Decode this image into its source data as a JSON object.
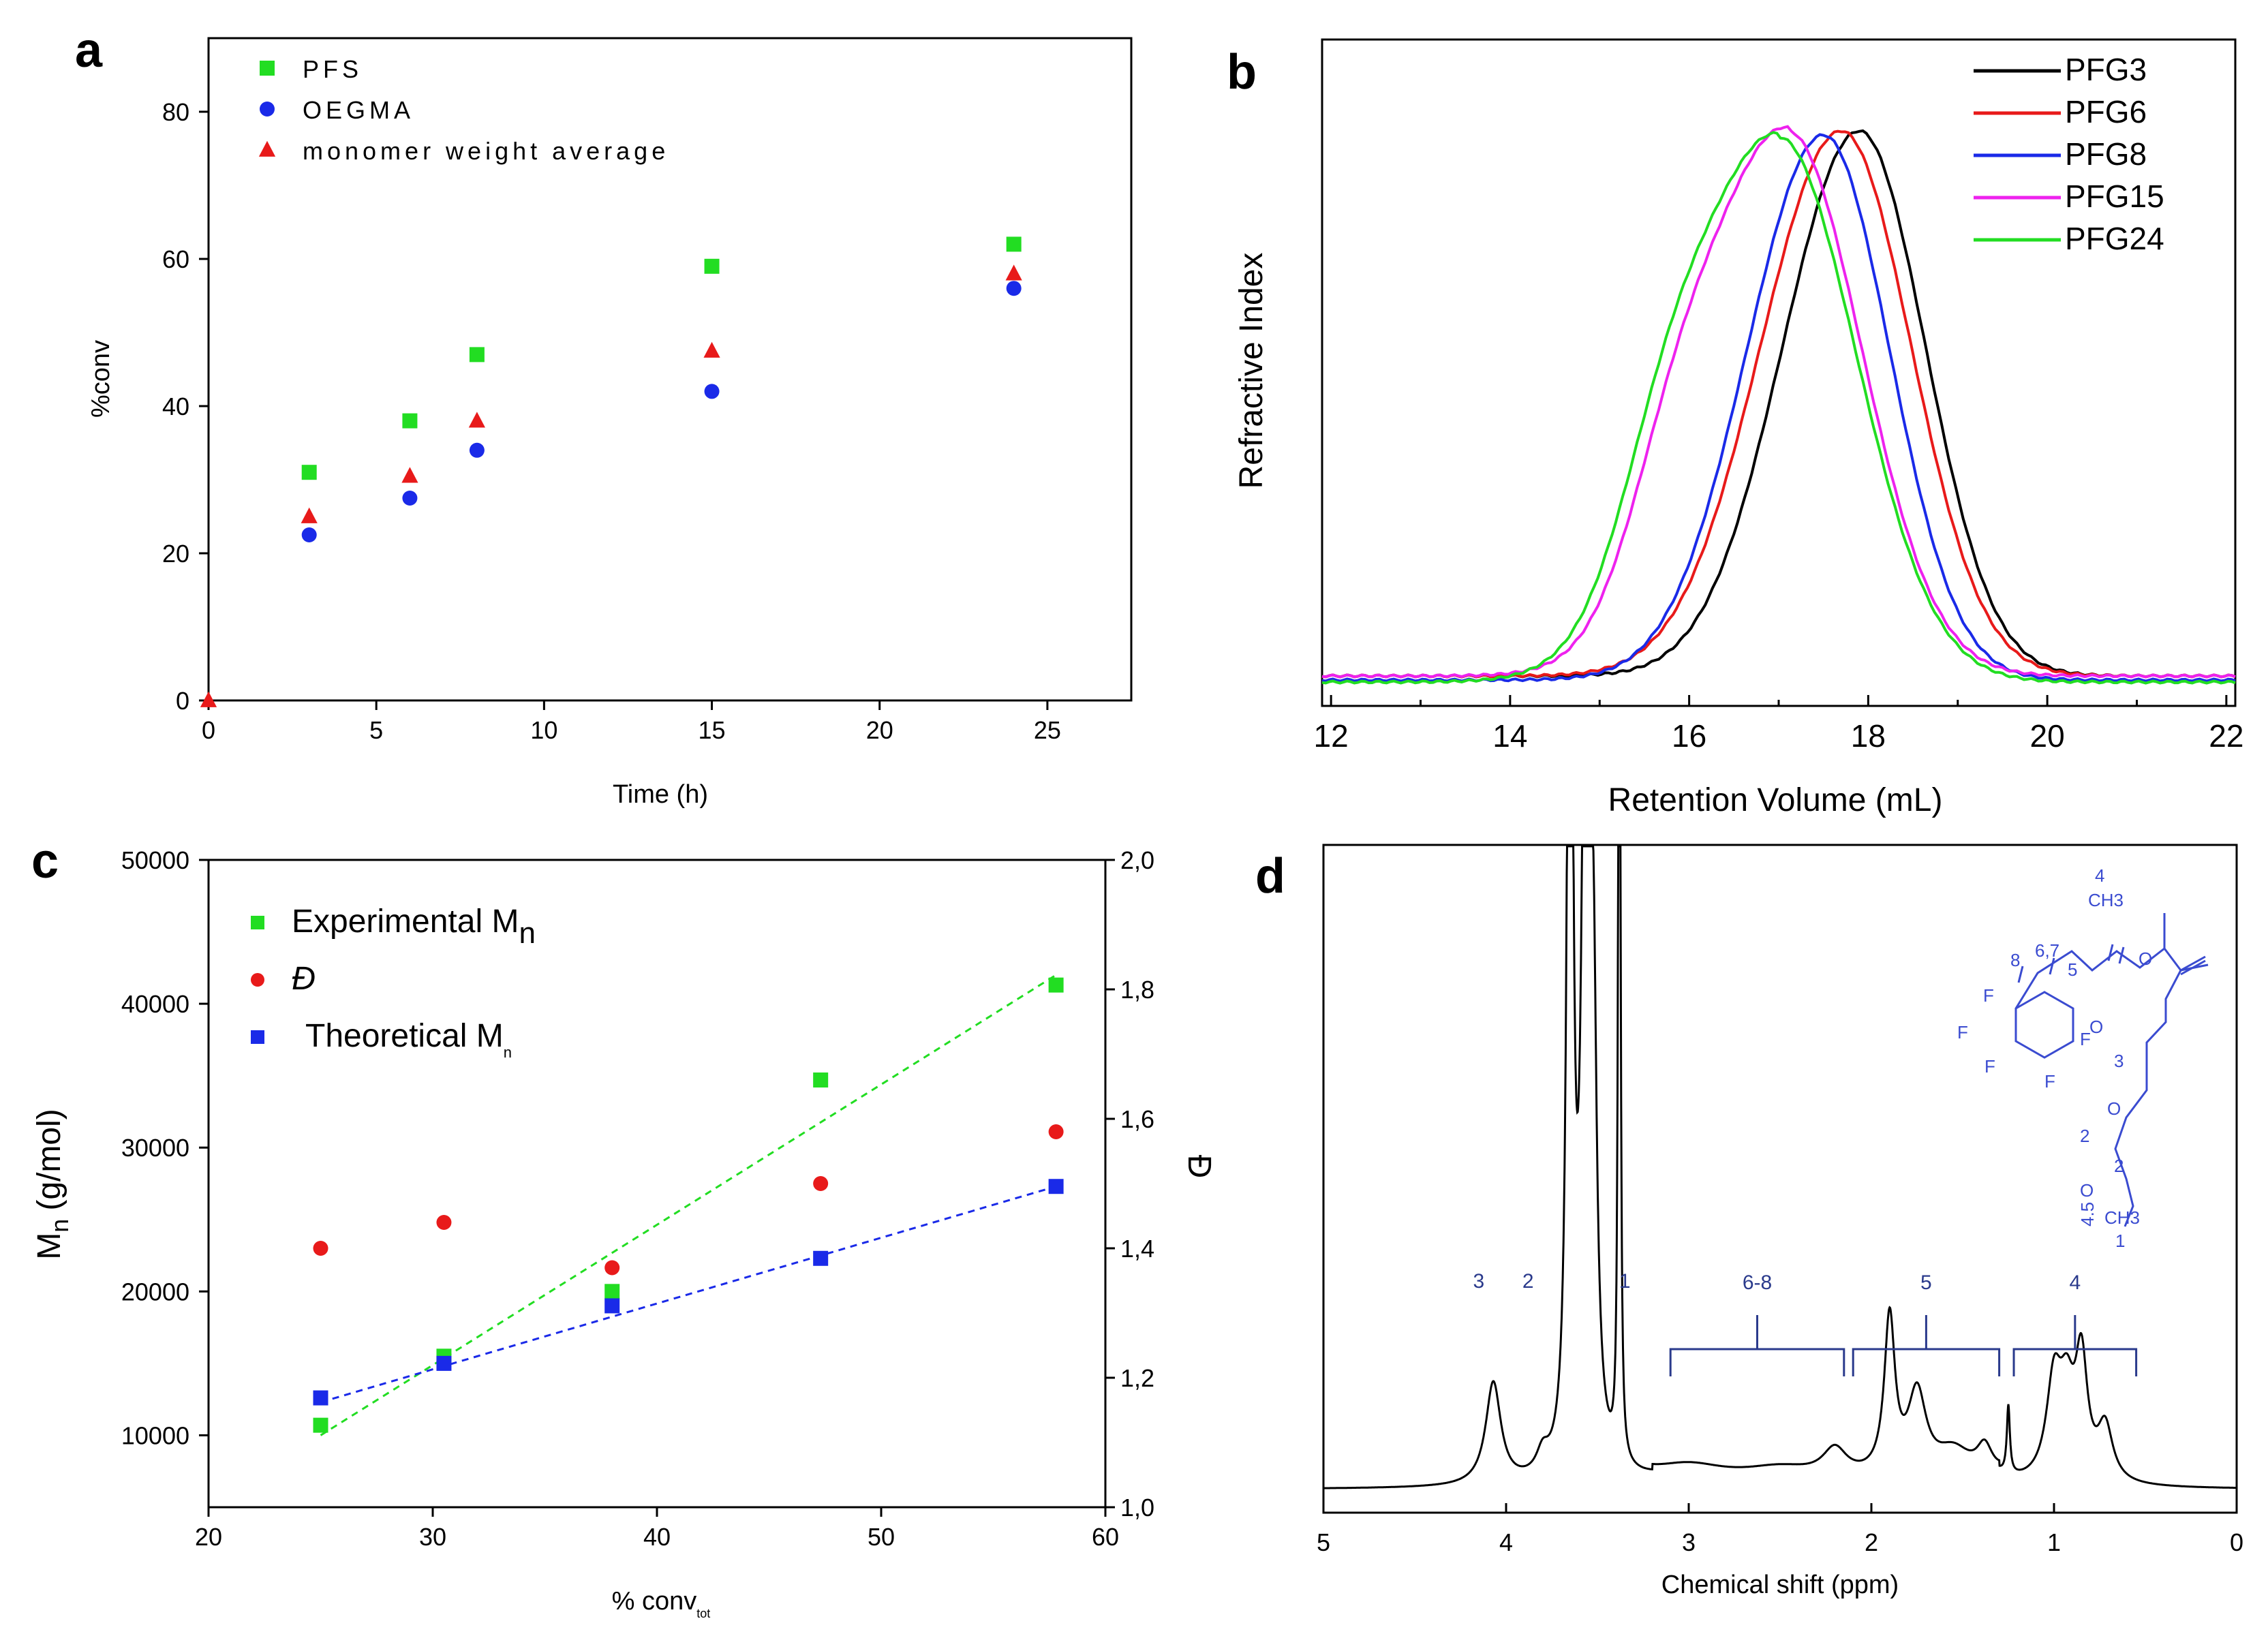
{
  "panels": {
    "a": {
      "label": "a",
      "chart_data": {
        "type": "scatter",
        "xlabel": "Time (h)",
        "ylabel": "%conv",
        "xlim": [
          0,
          27.5
        ],
        "ylim": [
          0,
          90
        ],
        "xticks": [
          0,
          5,
          10,
          15,
          20,
          25
        ],
        "yticks": [
          0,
          20,
          40,
          60,
          80
        ],
        "legend_position": "top-left",
        "series": [
          {
            "name": "PFS",
            "marker": "square",
            "color": "#22dd22",
            "x": [
              3,
              6,
              8,
              15,
              24
            ],
            "y": [
              31,
              38,
              47,
              59,
              62
            ]
          },
          {
            "name": "OEGMA",
            "marker": "circle",
            "color": "#1a2ae8",
            "x": [
              3,
              6,
              8,
              15,
              24
            ],
            "y": [
              22.5,
              27.5,
              34,
              42,
              56
            ]
          },
          {
            "name": "monomer weight average",
            "marker": "triangle",
            "color": "#e81a1a",
            "x": [
              0,
              3,
              6,
              8,
              15,
              24
            ],
            "y": [
              0,
              25,
              30.5,
              38,
              47.5,
              58
            ]
          }
        ]
      }
    },
    "b": {
      "label": "b",
      "chart_data": {
        "type": "line",
        "xlabel": "Retention Volume (mL)",
        "ylabel": "Refractive Index",
        "xlim": [
          11.9,
          22.1
        ],
        "xticks": [
          12,
          14,
          16,
          18,
          20,
          22
        ],
        "legend_position": "top-right",
        "series": [
          {
            "name": "PFG3",
            "color": "#000000",
            "peak": 17.9,
            "width": 0.9,
            "baseline": 0.03,
            "base_level": 0.03
          },
          {
            "name": "PFG6",
            "color": "#e81a1a",
            "peak": 17.7,
            "width": 0.95,
            "baseline": 0.03,
            "base_level": 0.03
          },
          {
            "name": "PFG8",
            "color": "#1a2ae8",
            "peak": 17.5,
            "width": 0.9,
            "baseline": 0.02,
            "base_level": 0.02
          },
          {
            "name": "PFG15",
            "color": "#ee22ee",
            "peak": 17.1,
            "width": 1.0,
            "baseline": 0.03,
            "base_level": 0.03
          },
          {
            "name": "PFG24",
            "color": "#22dd22",
            "peak": 17.0,
            "width": 1.05,
            "baseline": 0.015,
            "base_level": 0.015
          }
        ]
      }
    },
    "c": {
      "label": "c",
      "chart_data": {
        "type": "scatter",
        "xlabel_main": "% conv",
        "xlabel_sub": "tot",
        "ylabel_main": "M",
        "ylabel_sub": "n",
        "ylabel_units": "(g/mol)",
        "y2label": "Đ",
        "xlim": [
          20,
          60
        ],
        "ylim": [
          5000,
          50000
        ],
        "y2lim": [
          1.0,
          2.0
        ],
        "xticks": [
          20,
          30,
          40,
          50,
          60
        ],
        "yticks": [
          10000,
          20000,
          30000,
          40000,
          50000
        ],
        "y2ticks": [
          "1,0",
          "1,2",
          "1,4",
          "1,6",
          "1,8",
          "2,0"
        ],
        "y2tick_values": [
          1.0,
          1.2,
          1.4,
          1.6,
          1.8,
          2.0
        ],
        "legend_position": "top-left",
        "series": [
          {
            "name": "Experimental M",
            "sub": "n",
            "marker": "square",
            "color": "#22dd22",
            "axis": "left",
            "x": [
              25,
              30.5,
              38,
              47.3,
              57.8
            ],
            "y": [
              10700,
              15500,
              20000,
              34700,
              41300
            ],
            "fit": {
              "x": [
                25,
                57.8
              ],
              "y": [
                10000,
                42000
              ]
            }
          },
          {
            "name": "Đ",
            "sub": "",
            "marker": "circle",
            "color": "#e81a1a",
            "axis": "right",
            "x": [
              25,
              30.5,
              38,
              47.3,
              57.8
            ],
            "y": [
              1.4,
              1.44,
              1.37,
              1.5,
              1.58
            ]
          },
          {
            "name": "Theoretical M",
            "sub": "n",
            "marker": "square",
            "color": "#1a2ae8",
            "axis": "left",
            "x": [
              25,
              30.5,
              38,
              47.3,
              57.8
            ],
            "y": [
              12600,
              15000,
              19000,
              22300,
              27300
            ],
            "fit": {
              "x": [
                25,
                57.8
              ],
              "y": [
                12300,
                27300
              ]
            }
          }
        ]
      }
    },
    "d": {
      "label": "d",
      "chart_data": {
        "type": "line",
        "xlabel": "Chemical shift (ppm)",
        "xlim": [
          5,
          0
        ],
        "xticks": [
          5,
          4,
          3,
          2,
          1,
          0
        ],
        "peak_labels": [
          {
            "text": "3",
            "x": 4.15
          },
          {
            "text": "2",
            "x": 3.88
          },
          {
            "text": "1",
            "x": 3.35
          }
        ],
        "bracket_labels": [
          {
            "text": "6-8",
            "from": 3.1,
            "to": 2.15
          },
          {
            "text": "5",
            "from": 2.1,
            "to": 1.3
          },
          {
            "text": "4",
            "from": 1.22,
            "to": 0.55
          }
        ]
      },
      "structure": {
        "labels": [
          "4",
          "CH3",
          "6,7",
          "8",
          "5",
          "O",
          "O",
          "3",
          "O",
          "2",
          "2",
          "O",
          "4.5",
          "CH3",
          "1",
          "F",
          "F",
          "F",
          "F",
          "F"
        ]
      }
    }
  }
}
